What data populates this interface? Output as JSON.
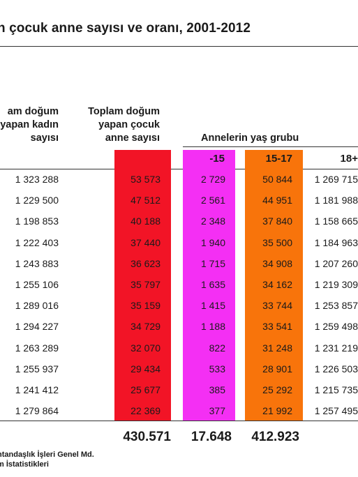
{
  "title": "n çocuk anne sayısı ve oranı, 2001-2012",
  "headers": {
    "kadin": [
      "am doğum",
      "yapan kadın",
      "sayısı"
    ],
    "cocuk": [
      "Toplam doğum",
      "yapan çocuk",
      "anne sayısı"
    ],
    "age_group": "Annelerin yaş grubu",
    "age_15": "-15",
    "age_15_17": "15-17",
    "age_18": "18+"
  },
  "colors": {
    "red": "#f21426",
    "magenta": "#f42ff4",
    "orange": "#f8740b"
  },
  "rows": [
    {
      "kadin": "1 323 288",
      "cocuk": "53 573",
      "a15": "2 729",
      "a1517": "50 844",
      "a18": "1 269 715"
    },
    {
      "kadin": "1 229 500",
      "cocuk": "47 512",
      "a15": "2 561",
      "a1517": "44 951",
      "a18": "1 181 988"
    },
    {
      "kadin": "1 198 853",
      "cocuk": "40 188",
      "a15": "2 348",
      "a1517": "37 840",
      "a18": "1 158 665"
    },
    {
      "kadin": "1 222 403",
      "cocuk": "37 440",
      "a15": "1 940",
      "a1517": "35 500",
      "a18": "1 184 963"
    },
    {
      "kadin": "1 243 883",
      "cocuk": "36 623",
      "a15": "1 715",
      "a1517": "34 908",
      "a18": "1 207 260"
    },
    {
      "kadin": "1 255 106",
      "cocuk": "35 797",
      "a15": "1 635",
      "a1517": "34 162",
      "a18": "1 219 309"
    },
    {
      "kadin": "1 289 016",
      "cocuk": "35 159",
      "a15": "1 415",
      "a1517": "33 744",
      "a18": "1 253 857"
    },
    {
      "kadin": "1 294 227",
      "cocuk": "34 729",
      "a15": "1 188",
      "a1517": "33 541",
      "a18": "1 259 498"
    },
    {
      "kadin": "1 263 289",
      "cocuk": "32 070",
      "a15": "822",
      "a1517": "31 248",
      "a18": "1 231 219"
    },
    {
      "kadin": "1 255 937",
      "cocuk": "29 434",
      "a15": "533",
      "a1517": "28 901",
      "a18": "1 226 503"
    },
    {
      "kadin": "1 241 412",
      "cocuk": "25 677",
      "a15": "385",
      "a1517": "25 292",
      "a18": "1 215 735"
    },
    {
      "kadin": "1 279 864",
      "cocuk": "22 369",
      "a15": "377",
      "a1517": "21 992",
      "a18": "1 257 495"
    }
  ],
  "totals": {
    "cocuk": "430.571",
    "a15": "17.648",
    "a1517": "412.923"
  },
  "source": [
    "ntandaşlık İşleri Genel Md.",
    "m İstatistikleri"
  ]
}
